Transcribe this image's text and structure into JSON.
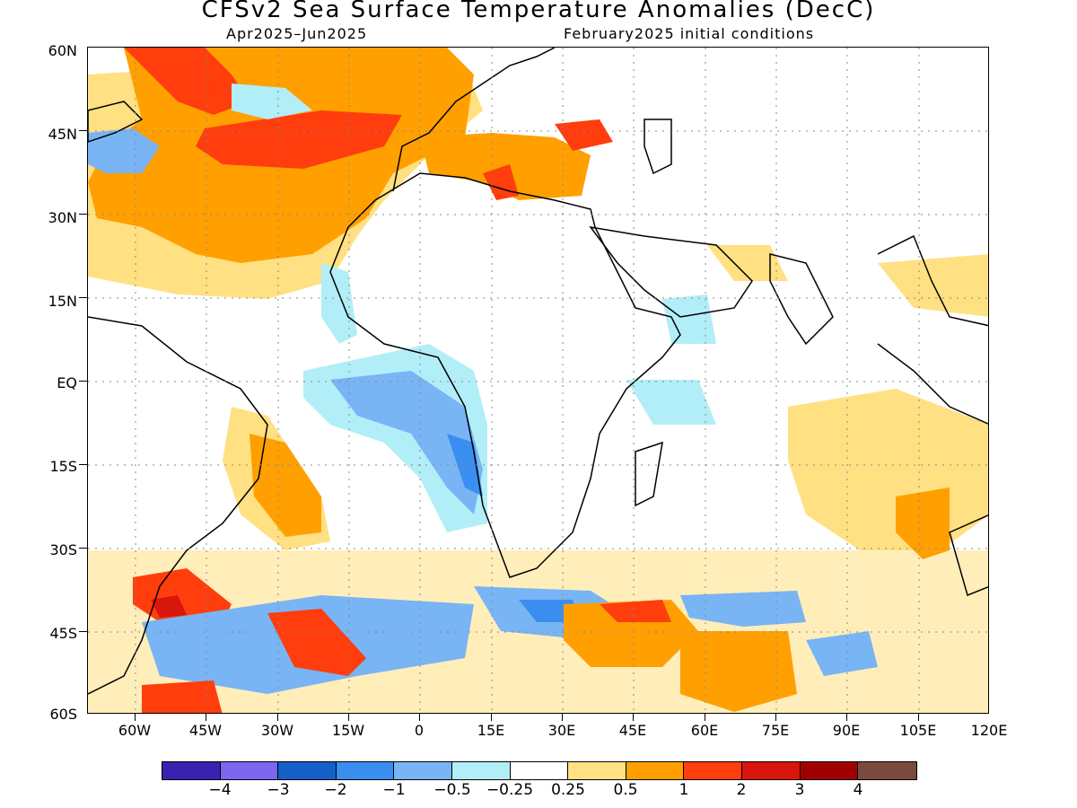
{
  "title": "CFSv2 Sea Surface Temperature Anomalies (DecC)",
  "period": "Apr2025–Jun2025",
  "initial_conditions": "February2025 initial conditions",
  "lat_labels": [
    "60N",
    "45N",
    "30N",
    "15N",
    "EQ",
    "15S",
    "30S",
    "45S",
    "60S"
  ],
  "lon_labels": [
    "60W",
    "45W",
    "30W",
    "15W",
    "0",
    "15E",
    "30E",
    "45E",
    "60E",
    "75E",
    "90E",
    "105E",
    "120E"
  ],
  "colorbar": {
    "colors": [
      "#3a22b0",
      "#7b68ee",
      "#1560c8",
      "#3a8ef0",
      "#79b4f5",
      "#b2eef8",
      "#ffffff",
      "#ffe082",
      "#ffa000",
      "#ff3d0d",
      "#d8160e",
      "#a10000",
      "#7b4a3e"
    ],
    "labels": [
      "−4",
      "−3",
      "−2",
      "−1",
      "−0.5",
      "−0.25",
      "0.25",
      "0.5",
      "1",
      "2",
      "3",
      "4"
    ]
  },
  "map": {
    "lon_range": [
      -70,
      120
    ],
    "lat_range": [
      -60,
      60
    ],
    "grid": "dotted"
  }
}
